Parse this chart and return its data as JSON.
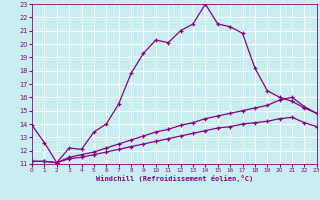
{
  "xlabel": "Windchill (Refroidissement éolien,°C)",
  "bg_color": "#c8eef0",
  "line_color": "#880088",
  "grid_color": "#ffffff",
  "ylim": [
    11,
    23
  ],
  "xlim": [
    0,
    23
  ],
  "yticks": [
    11,
    12,
    13,
    14,
    15,
    16,
    17,
    18,
    19,
    20,
    21,
    22,
    23
  ],
  "xticks": [
    0,
    1,
    2,
    3,
    4,
    5,
    6,
    7,
    8,
    9,
    10,
    11,
    12,
    13,
    14,
    15,
    16,
    17,
    18,
    19,
    20,
    21,
    22,
    23
  ],
  "line1_x": [
    0,
    1,
    2,
    3,
    4,
    5,
    6,
    7,
    8,
    9,
    10,
    11,
    12,
    13,
    14,
    15,
    16,
    17,
    18,
    19,
    20,
    21,
    22,
    23
  ],
  "line1_y": [
    13.9,
    12.6,
    11.1,
    12.2,
    12.1,
    13.4,
    14.0,
    15.5,
    17.8,
    19.3,
    20.3,
    20.1,
    21.0,
    21.5,
    23.0,
    21.5,
    21.3,
    20.8,
    18.2,
    16.5,
    16.0,
    15.7,
    15.2,
    14.8
  ],
  "line2_x": [
    0,
    1,
    2,
    3,
    4,
    5,
    6,
    7,
    8,
    9,
    10,
    11,
    12,
    13,
    14,
    15,
    16,
    17,
    18,
    19,
    20,
    21,
    22,
    23
  ],
  "line2_y": [
    11.2,
    11.2,
    11.1,
    11.5,
    11.7,
    11.9,
    12.2,
    12.5,
    12.8,
    13.1,
    13.4,
    13.6,
    13.9,
    14.1,
    14.4,
    14.6,
    14.8,
    15.0,
    15.2,
    15.4,
    15.8,
    16.0,
    15.3,
    14.8
  ],
  "line3_x": [
    0,
    1,
    2,
    3,
    4,
    5,
    6,
    7,
    8,
    9,
    10,
    11,
    12,
    13,
    14,
    15,
    16,
    17,
    18,
    19,
    20,
    21,
    22,
    23
  ],
  "line3_y": [
    11.2,
    11.2,
    11.1,
    11.4,
    11.5,
    11.7,
    11.9,
    12.1,
    12.3,
    12.5,
    12.7,
    12.9,
    13.1,
    13.3,
    13.5,
    13.7,
    13.8,
    14.0,
    14.1,
    14.2,
    14.4,
    14.5,
    14.1,
    13.8
  ]
}
